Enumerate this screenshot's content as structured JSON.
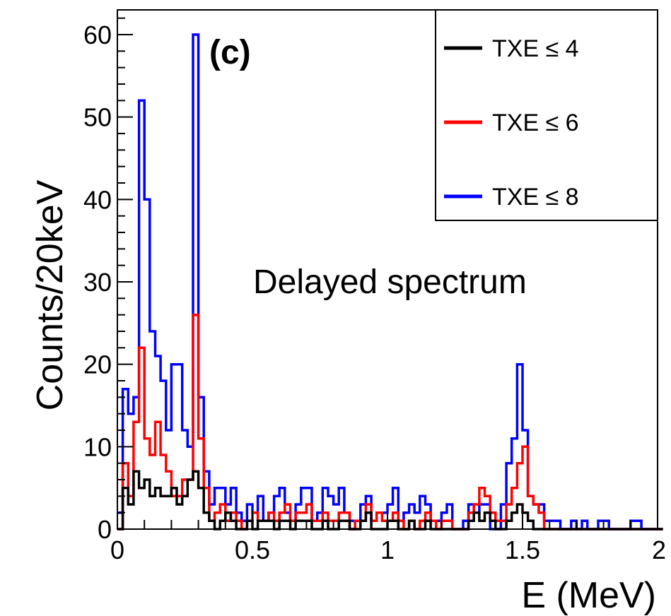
{
  "chart_data": {
    "type": "line",
    "subtype": "step-histogram",
    "panel_label": "(c)",
    "annotation": "Delayed spectrum",
    "xlabel": "E (MeV)",
    "ylabel": "Counts/20keV",
    "xlim": [
      0,
      2
    ],
    "ylim": [
      0,
      63
    ],
    "bin_width": 0.02,
    "x_ticks": [
      0,
      0.5,
      1,
      1.5,
      2
    ],
    "x_tick_labels": [
      "0",
      "0.5",
      "1",
      "1.5",
      "2"
    ],
    "y_ticks": [
      0,
      10,
      20,
      30,
      40,
      50,
      60
    ],
    "y_tick_labels": [
      "0",
      "10",
      "20",
      "30",
      "40",
      "50",
      "60"
    ],
    "legend_position": "top-right",
    "grid": false,
    "series": [
      {
        "name": "TXE ≤ 8",
        "color": "#0000ff",
        "values": [
          2,
          17,
          14,
          16,
          52,
          40,
          24,
          21,
          18,
          12,
          20,
          20,
          12,
          10,
          60,
          16,
          7,
          3,
          5,
          5,
          3,
          5,
          2,
          1,
          3,
          2,
          4,
          1,
          2,
          4,
          5,
          2,
          1,
          3,
          5,
          5,
          1,
          2,
          5,
          4,
          3,
          5,
          2,
          1,
          1,
          3,
          4,
          1,
          2,
          2,
          3,
          5,
          1,
          2,
          3,
          2,
          4,
          3,
          1,
          1,
          2,
          3,
          0,
          0,
          1,
          3,
          2,
          3,
          3,
          0,
          0,
          3,
          8,
          11,
          20,
          12,
          4,
          3,
          3,
          1,
          1,
          1,
          0,
          0,
          1,
          0,
          1,
          0,
          0,
          1,
          1,
          0,
          0,
          0,
          0,
          1,
          1,
          0,
          0,
          0,
          0,
          0
        ]
      },
      {
        "name": "TXE ≤ 6",
        "color": "#ff0000",
        "values": [
          0,
          8,
          4,
          13,
          22,
          11,
          9,
          13,
          9,
          7,
          4,
          4,
          6,
          6,
          26,
          11,
          5,
          1,
          2,
          3,
          1,
          2,
          1,
          0,
          1,
          2,
          1,
          1,
          2,
          1,
          2,
          3,
          1,
          2,
          2,
          3,
          1,
          1,
          2,
          1,
          1,
          2,
          2,
          0,
          1,
          1,
          3,
          1,
          2,
          1,
          1,
          2,
          1,
          0,
          1,
          0,
          1,
          2,
          1,
          0,
          1,
          1,
          0,
          0,
          0,
          2,
          3,
          5,
          4,
          2,
          1,
          1,
          3,
          5,
          8,
          10,
          4,
          3,
          2,
          0,
          0,
          0,
          0,
          0,
          0,
          0,
          0,
          0,
          0,
          0,
          0,
          0,
          0,
          0,
          0,
          0,
          0,
          0,
          0,
          0,
          0,
          0
        ]
      },
      {
        "name": "TXE ≤ 4",
        "color": "#000000",
        "values": [
          0,
          5,
          3,
          7,
          5,
          6,
          4,
          5,
          4,
          4,
          5,
          3,
          4,
          6,
          7,
          5,
          2,
          1,
          0,
          1,
          2,
          1,
          0,
          0,
          1,
          0,
          1,
          1,
          1,
          0,
          1,
          1,
          0,
          1,
          1,
          1,
          0,
          0,
          1,
          0,
          0,
          1,
          1,
          0,
          0,
          1,
          2,
          0,
          0,
          0,
          1,
          1,
          0,
          0,
          1,
          0,
          0,
          1,
          0,
          0,
          0,
          0,
          0,
          0,
          0,
          1,
          2,
          1,
          2,
          1,
          0,
          0,
          1,
          2,
          3,
          2,
          1,
          0,
          0,
          0,
          0,
          0,
          0,
          0,
          0,
          0,
          0,
          0,
          0,
          0,
          0,
          0,
          0,
          0,
          0,
          0,
          0,
          0,
          0,
          0,
          0,
          0
        ]
      }
    ],
    "legend_order": [
      "TXE ≤ 4",
      "TXE ≤ 6",
      "TXE ≤ 8"
    ]
  }
}
